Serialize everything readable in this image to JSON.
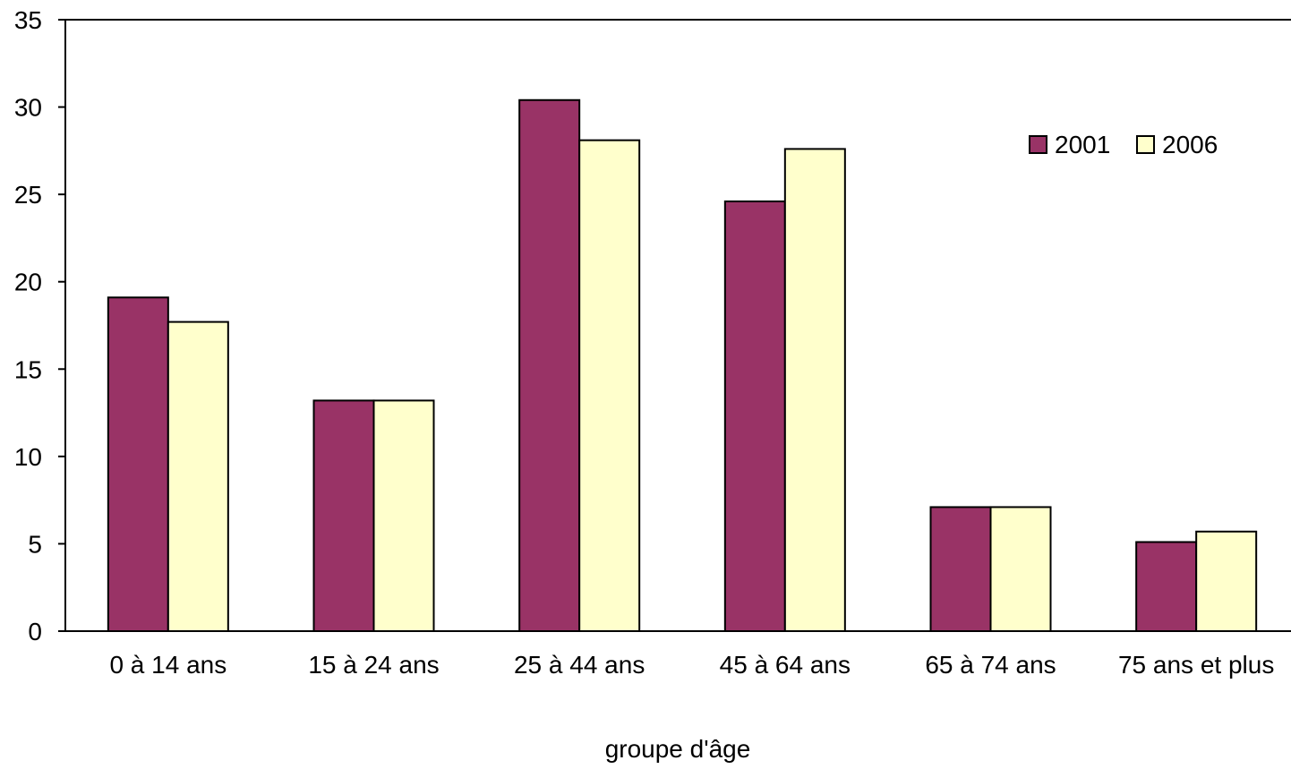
{
  "chart_data": {
    "type": "bar",
    "title": "",
    "xlabel": "groupe d'âge",
    "ylabel": "",
    "categories": [
      "0 à 14 ans",
      "15 à 24 ans",
      "25 à 44 ans",
      "45 à 64 ans",
      "65 à 74 ans",
      "75 ans et plus"
    ],
    "series": [
      {
        "name": "2001",
        "color": "#993366",
        "values": [
          19.1,
          13.2,
          30.4,
          24.6,
          7.1,
          5.1
        ]
      },
      {
        "name": "2006",
        "color": "#ffffcc",
        "values": [
          17.7,
          13.2,
          28.1,
          27.6,
          7.1,
          5.7
        ]
      }
    ],
    "ylim": [
      0,
      35
    ],
    "yticks": [
      0,
      5,
      10,
      15,
      20,
      25,
      30,
      35
    ],
    "grid": false,
    "legend": "top-right"
  }
}
